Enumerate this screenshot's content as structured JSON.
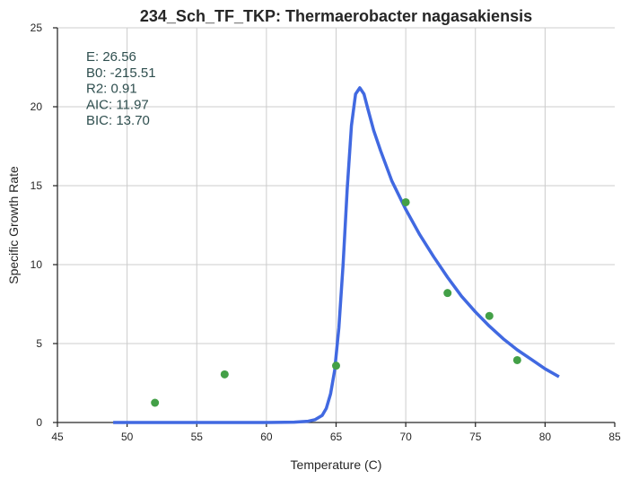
{
  "chart_data": {
    "type": "scatter",
    "title": "234_Sch_TF_TKP: Thermaerobacter nagasakiensis",
    "xlabel": "Temperature (C)",
    "ylabel": "Specific Growth Rate",
    "xlim": [
      45,
      85
    ],
    "ylim": [
      0,
      25
    ],
    "xticks": [
      45,
      50,
      55,
      60,
      65,
      70,
      75,
      80,
      85
    ],
    "yticks": [
      0,
      5,
      10,
      15,
      20,
      25
    ],
    "grid": true,
    "annotation_lines": [
      "E:  26.56",
      "B0:  -215.51",
      "R2:  0.91",
      "AIC: 11.97",
      "BIC: 13.70"
    ],
    "series": [
      {
        "type": "scatter",
        "color": "#43a047",
        "x": [
          52,
          57,
          65,
          70,
          73,
          76,
          78
        ],
        "y": [
          1.25,
          3.05,
          3.6,
          13.95,
          8.2,
          6.75,
          3.95
        ]
      },
      {
        "type": "line",
        "color": "#4169e1",
        "x": [
          49,
          60,
          62,
          63,
          63.5,
          64,
          64.3,
          64.6,
          64.9,
          65.2,
          65.5,
          65.8,
          66.1,
          66.4,
          66.7,
          67.0,
          67.3,
          67.7,
          68.2,
          69,
          70,
          71,
          72,
          73,
          74,
          75,
          76,
          77,
          78,
          79,
          80,
          81
        ],
        "y": [
          0,
          0,
          0.02,
          0.08,
          0.18,
          0.45,
          0.9,
          1.8,
          3.3,
          6.0,
          10.0,
          14.8,
          18.8,
          20.8,
          21.2,
          20.8,
          19.8,
          18.5,
          17.2,
          15.3,
          13.5,
          11.9,
          10.5,
          9.2,
          8.0,
          7.0,
          6.1,
          5.3,
          4.6,
          4.0,
          3.4,
          2.9
        ]
      }
    ]
  }
}
